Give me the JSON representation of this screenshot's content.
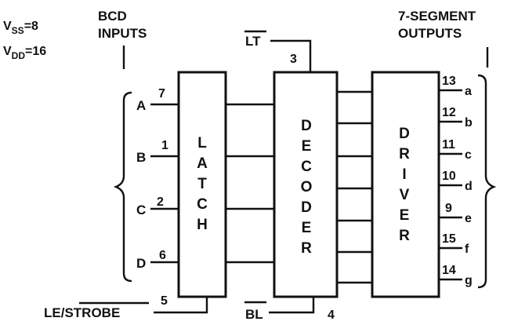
{
  "supply": {
    "vss_main": "V",
    "vss_sub": "SS",
    "vss_value": "=8",
    "vdd_main": "V",
    "vdd_sub": "DD",
    "vdd_value": "=16"
  },
  "headings": {
    "inputs_line1": "BCD",
    "inputs_line2": "INPUTS",
    "outputs_line1": "7-SEGMENT",
    "outputs_line2": "OUTPUTS"
  },
  "control": {
    "lt_label": "LT",
    "lt_pin": "3",
    "bl_label": "BL",
    "bl_pin": "4",
    "le_label": "LE/",
    "strobe_label": "STROBE",
    "le_pin": "5"
  },
  "blocks": {
    "latch": [
      "L",
      "A",
      "T",
      "C",
      "H"
    ],
    "decoder": [
      "D",
      "E",
      "C",
      "O",
      "D",
      "E",
      "R"
    ],
    "driver": [
      "D",
      "R",
      "I",
      "V",
      "E",
      "R"
    ]
  },
  "inputs": [
    {
      "name": "A",
      "pin": "7"
    },
    {
      "name": "B",
      "pin": "1"
    },
    {
      "name": "C",
      "pin": "2"
    },
    {
      "name": "D",
      "pin": "6"
    }
  ],
  "outputs": [
    {
      "pin": "13",
      "seg": "a"
    },
    {
      "pin": "12",
      "seg": "b"
    },
    {
      "pin": "11",
      "seg": "c"
    },
    {
      "pin": "10",
      "seg": "d"
    },
    {
      "pin": "9",
      "seg": "e"
    },
    {
      "pin": "15",
      "seg": "f"
    },
    {
      "pin": "14",
      "seg": "g"
    }
  ]
}
